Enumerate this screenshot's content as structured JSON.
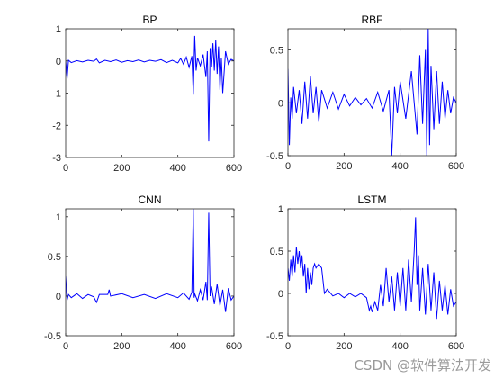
{
  "chart_data": [
    {
      "type": "line",
      "title": "BP",
      "xlim": [
        0,
        600
      ],
      "ylim": [
        -3,
        1
      ],
      "xticks": [
        0,
        200,
        400,
        600
      ],
      "yticks": [
        -3,
        -2,
        -1,
        0,
        1
      ],
      "line_color": "#0000ff",
      "series": [
        {
          "x": [
            0,
            5,
            10,
            20,
            40,
            60,
            80,
            100,
            110,
            120,
            140,
            160,
            180,
            200,
            220,
            240,
            260,
            280,
            300,
            320,
            340,
            360,
            380,
            400,
            410,
            420,
            430,
            440,
            450,
            455,
            460,
            465,
            470,
            480,
            490,
            500,
            505,
            510,
            515,
            520,
            525,
            530,
            535,
            540,
            545,
            550,
            555,
            560,
            570,
            580,
            590,
            600
          ],
          "y": [
            0,
            -0.55,
            0.02,
            -0.05,
            0.01,
            -0.03,
            0.02,
            -0.01,
            0.06,
            -0.06,
            0.02,
            -0.02,
            0.03,
            -0.04,
            0.01,
            -0.02,
            0.03,
            -0.03,
            0.02,
            -0.01,
            0.04,
            -0.05,
            0.02,
            -0.06,
            0.08,
            -0.1,
            0.12,
            -0.2,
            0.15,
            -1.05,
            0.78,
            -0.3,
            0.1,
            -0.15,
            0.2,
            -0.5,
            0.3,
            -2.5,
            0.4,
            -0.2,
            0.55,
            -0.3,
            0.65,
            -0.4,
            0.45,
            -0.9,
            0.1,
            -1.0,
            0.3,
            -0.1,
            0.05,
            0.0
          ]
        }
      ]
    },
    {
      "type": "line",
      "title": "RBF",
      "xlim": [
        0,
        600
      ],
      "ylim": [
        -0.5,
        0.7
      ],
      "xticks": [
        0,
        200,
        400,
        600
      ],
      "yticks": [
        -0.5,
        0,
        0.5
      ],
      "line_color": "#0000ff",
      "series": [
        {
          "x": [
            0,
            5,
            10,
            15,
            20,
            30,
            40,
            50,
            60,
            70,
            80,
            90,
            100,
            110,
            120,
            140,
            160,
            180,
            200,
            220,
            240,
            260,
            280,
            300,
            320,
            340,
            360,
            370,
            380,
            390,
            400,
            420,
            440,
            460,
            470,
            480,
            490,
            495,
            500,
            505,
            510,
            520,
            530,
            540,
            550,
            560,
            570,
            580,
            590,
            600
          ],
          "y": [
            0.32,
            -0.4,
            0.05,
            -0.15,
            0.15,
            -0.1,
            0.12,
            -0.2,
            0.2,
            -0.15,
            0.25,
            -0.1,
            0.15,
            -0.18,
            0.12,
            -0.05,
            0.1,
            -0.06,
            0.08,
            -0.03,
            0.05,
            -0.02,
            0.04,
            -0.05,
            0.1,
            -0.08,
            0.12,
            -0.5,
            0.15,
            -0.1,
            0.2,
            -0.15,
            0.3,
            -0.3,
            0.45,
            -0.2,
            0.5,
            -0.5,
            0.7,
            -0.4,
            0.35,
            -0.25,
            0.3,
            -0.2,
            0.2,
            -0.15,
            0.12,
            -0.1,
            0.05,
            0.0
          ]
        }
      ]
    },
    {
      "type": "line",
      "title": "CNN",
      "xlim": [
        0,
        600
      ],
      "ylim": [
        -0.5,
        1.1
      ],
      "xticks": [
        0,
        200,
        400,
        600
      ],
      "yticks": [
        -0.5,
        0,
        0.5,
        1
      ],
      "line_color": "#0000ff",
      "series": [
        {
          "x": [
            0,
            5,
            10,
            20,
            40,
            60,
            80,
            100,
            110,
            120,
            150,
            155,
            160,
            200,
            240,
            280,
            320,
            360,
            400,
            420,
            440,
            450,
            455,
            458,
            460,
            470,
            480,
            490,
            500,
            505,
            510,
            515,
            520,
            530,
            540,
            550,
            560,
            570,
            580,
            590,
            600
          ],
          "y": [
            0.25,
            -0.05,
            0.02,
            -0.02,
            0.03,
            -0.03,
            0.02,
            -0.01,
            -0.08,
            0.02,
            0.02,
            0.08,
            0.0,
            0.03,
            -0.02,
            0.02,
            -0.03,
            0.03,
            -0.02,
            0.04,
            -0.04,
            0.05,
            1.1,
            -0.02,
            0.03,
            -0.06,
            0.08,
            -0.05,
            0.18,
            -0.05,
            1.05,
            0.0,
            0.12,
            -0.1,
            0.15,
            -0.12,
            0.08,
            -0.2,
            0.1,
            -0.05,
            0.0
          ]
        }
      ]
    },
    {
      "type": "line",
      "title": "LSTM",
      "xlim": [
        0,
        600
      ],
      "ylim": [
        -0.5,
        1
      ],
      "xticks": [
        0,
        200,
        400,
        600
      ],
      "yticks": [
        -0.5,
        0,
        0.5,
        1
      ],
      "line_color": "#0000ff",
      "series": [
        {
          "x": [
            0,
            5,
            10,
            15,
            20,
            25,
            30,
            35,
            40,
            45,
            50,
            55,
            60,
            65,
            70,
            75,
            80,
            85,
            90,
            95,
            100,
            110,
            120,
            130,
            140,
            160,
            180,
            200,
            220,
            240,
            260,
            280,
            290,
            295,
            300,
            310,
            320,
            330,
            340,
            350,
            360,
            370,
            380,
            390,
            400,
            410,
            420,
            430,
            440,
            450,
            455,
            460,
            465,
            470,
            480,
            490,
            500,
            510,
            520,
            530,
            540,
            550,
            560,
            570,
            580,
            590,
            600
          ],
          "y": [
            0.3,
            0.15,
            0.4,
            0.2,
            0.45,
            0.25,
            0.55,
            0.35,
            0.5,
            0.3,
            0.45,
            0.2,
            0.35,
            0.0,
            0.3,
            0.05,
            0.25,
            0.1,
            0.3,
            0.35,
            0.3,
            0.35,
            0.3,
            0.0,
            0.05,
            -0.03,
            0.0,
            -0.05,
            0.0,
            -0.04,
            0.0,
            -0.05,
            -0.2,
            -0.15,
            -0.22,
            -0.1,
            -0.2,
            0.1,
            -0.15,
            0.3,
            -0.1,
            0.2,
            -0.2,
            0.25,
            -0.15,
            0.3,
            -0.2,
            0.4,
            -0.1,
            0.5,
            0.9,
            0.1,
            0.45,
            -0.2,
            0.3,
            -0.25,
            0.35,
            -0.2,
            0.25,
            -0.3,
            0.15,
            -0.2,
            0.1,
            -0.25,
            0.05,
            -0.15,
            -0.1
          ]
        }
      ]
    }
  ],
  "watermark": "CSDN @软件算法开发"
}
